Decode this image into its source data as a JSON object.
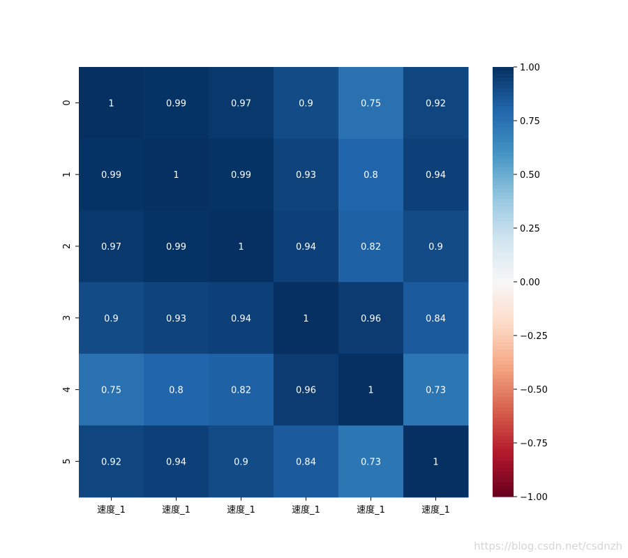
{
  "chart_data": {
    "type": "heatmap",
    "x_categories": [
      "速度_1",
      "速度_1",
      "速度_1",
      "速度_1",
      "速度_1",
      "速度_1"
    ],
    "y_categories": [
      "0",
      "1",
      "2",
      "3",
      "4",
      "5"
    ],
    "values": [
      [
        1,
        0.99,
        0.97,
        0.9,
        0.75,
        0.92
      ],
      [
        0.99,
        1,
        0.99,
        0.93,
        0.8,
        0.94
      ],
      [
        0.97,
        0.99,
        1,
        0.94,
        0.82,
        0.9
      ],
      [
        0.9,
        0.93,
        0.94,
        1,
        0.96,
        0.84
      ],
      [
        0.75,
        0.8,
        0.82,
        0.96,
        1,
        0.73
      ],
      [
        0.92,
        0.94,
        0.9,
        0.84,
        0.73,
        1
      ]
    ],
    "annotations": true,
    "colormap": "RdBu",
    "vmin": -1.0,
    "vmax": 1.0,
    "colorbar_ticks": [
      "1.00",
      "0.75",
      "0.50",
      "0.25",
      "0.00",
      "−0.25",
      "−0.50",
      "−0.75",
      "−1.00"
    ],
    "colorbar_tick_values": [
      1.0,
      0.75,
      0.5,
      0.25,
      0.0,
      -0.25,
      -0.5,
      -0.75,
      -1.0
    ]
  },
  "watermark": "https://blog.csdn.net/csdnzh"
}
